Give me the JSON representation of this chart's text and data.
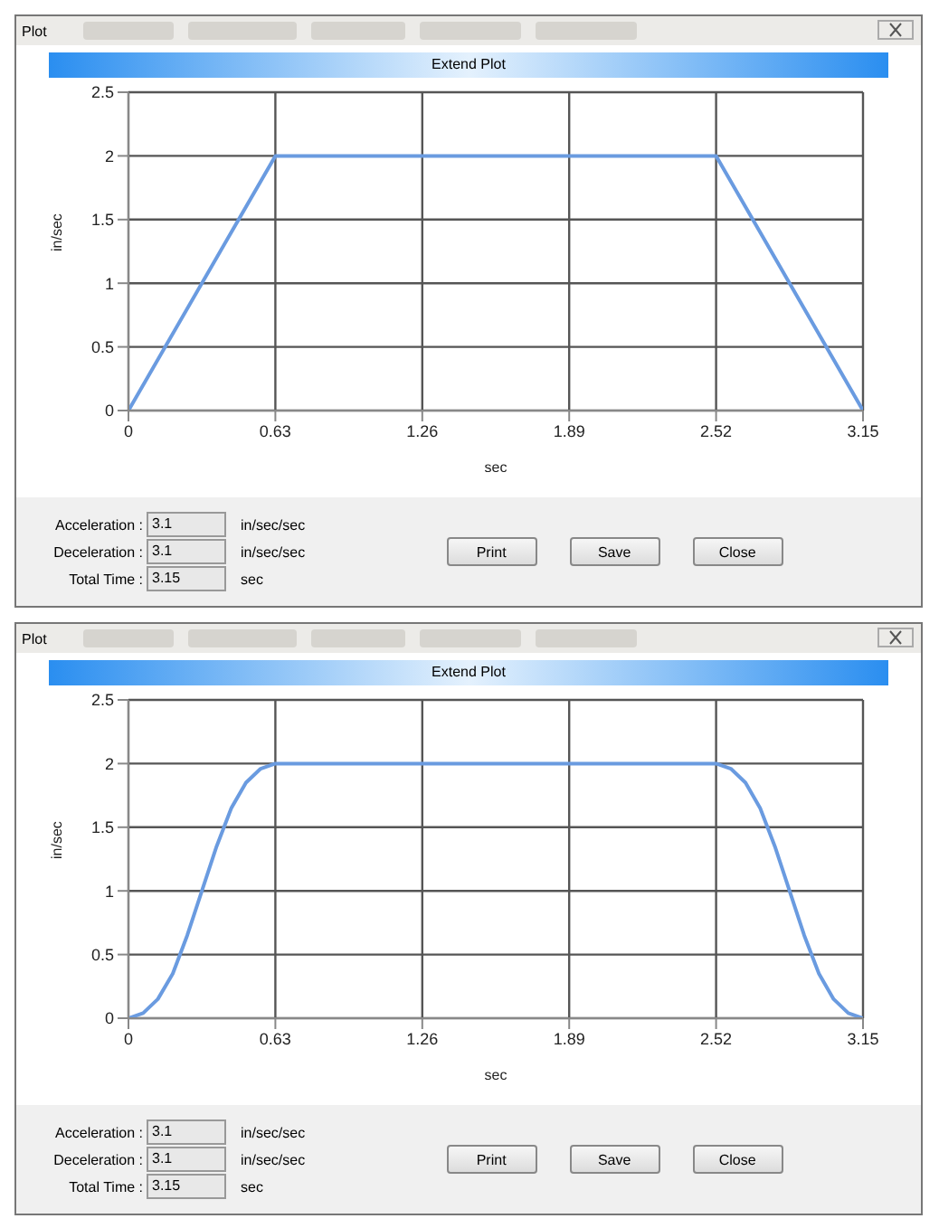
{
  "chart_data": [
    {
      "type": "line",
      "title": "Extend Plot",
      "xlabel": "sec",
      "ylabel": "in/sec",
      "xlim": [
        0,
        3.15
      ],
      "xticks": [
        0,
        0.63,
        1.26,
        1.89,
        2.52,
        3.15
      ],
      "ylim": [
        0,
        2.5
      ],
      "yticks": [
        0,
        0.5,
        1,
        1.5,
        2,
        2.5
      ],
      "grid": true,
      "legend": false,
      "marker": "none",
      "line_style": "solid",
      "x": [
        0,
        0.63,
        2.52,
        3.15
      ],
      "series": [
        {
          "color": "#6a9be0",
          "values": [
            0,
            2,
            2,
            0
          ]
        }
      ],
      "annotations": [
        "Plot",
        "Acceleration :",
        "3.1",
        "in/sec/sec",
        "Deceleration :",
        "3.1",
        "in/sec/sec",
        "Total Time :",
        "3.15",
        "sec",
        "Print",
        "Save",
        "Close"
      ]
    },
    {
      "type": "line",
      "title": "Extend Plot",
      "xlabel": "sec",
      "ylabel": "in/sec",
      "xlim": [
        0,
        3.15
      ],
      "xticks": [
        0,
        0.63,
        1.26,
        1.89,
        2.52,
        3.15
      ],
      "ylim": [
        0,
        2.5
      ],
      "yticks": [
        0,
        0.5,
        1,
        1.5,
        2,
        2.5
      ],
      "grid": true,
      "legend": false,
      "marker": "none",
      "line_style": "solid",
      "x": [
        0,
        0.063,
        0.126,
        0.19,
        0.252,
        0.315,
        0.378,
        0.441,
        0.504,
        0.567,
        0.63,
        2.52,
        2.583,
        2.646,
        2.709,
        2.772,
        2.835,
        2.898,
        2.961,
        3.024,
        3.087,
        3.15
      ],
      "series": [
        {
          "color": "#6a9be0",
          "values": [
            0,
            0.04,
            0.15,
            0.35,
            0.65,
            1.0,
            1.35,
            1.65,
            1.85,
            1.96,
            2,
            2,
            1.96,
            1.85,
            1.65,
            1.35,
            1.0,
            0.65,
            0.35,
            0.15,
            0.04,
            0
          ]
        }
      ],
      "annotations": [
        "Plot",
        "Acceleration :",
        "3.1",
        "in/sec/sec",
        "Deceleration :",
        "3.1",
        "in/sec/sec",
        "Total Time :",
        "3.15",
        "sec",
        "Print",
        "Save",
        "Close"
      ]
    }
  ]
}
